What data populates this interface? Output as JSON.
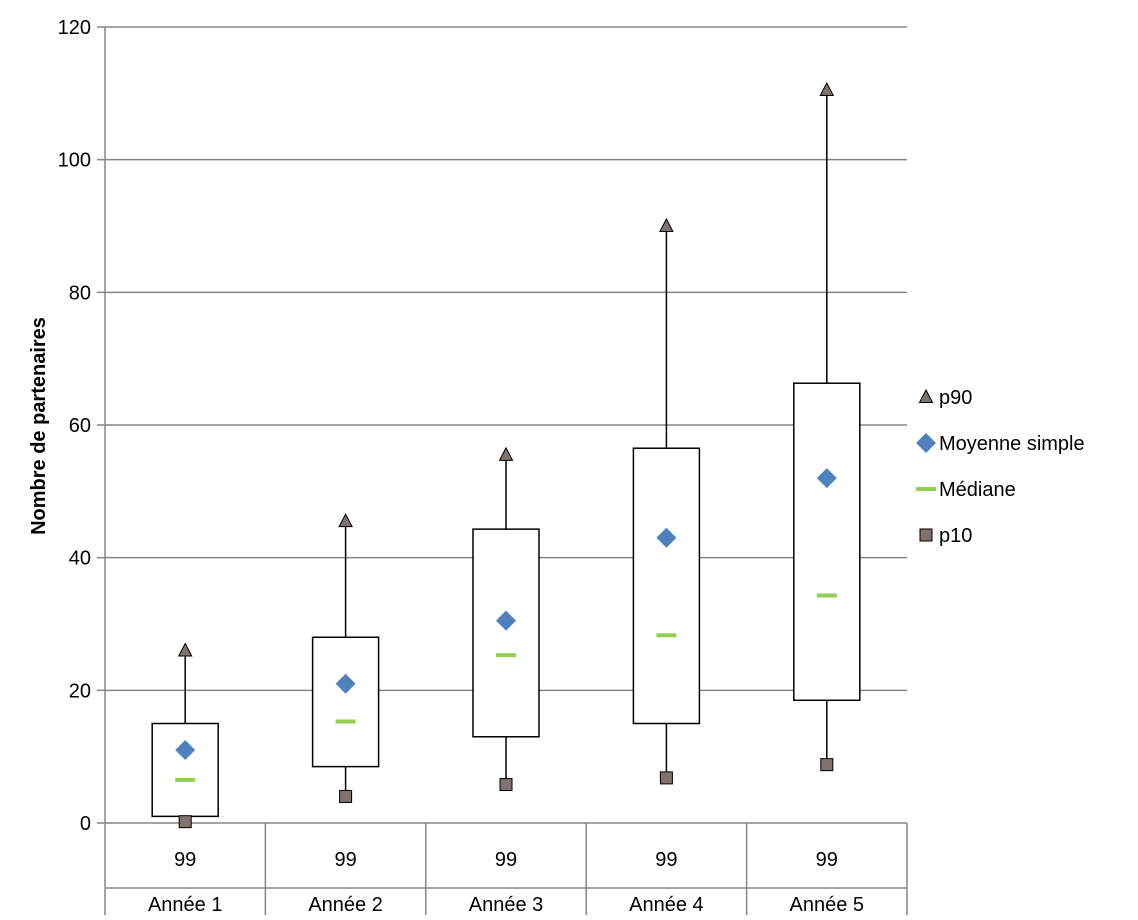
{
  "chart_data": {
    "type": "box",
    "title": "",
    "xlabel": "",
    "ylabel": "Nombre de partenaires",
    "ylim": [
      0,
      120
    ],
    "ytick_step": 20,
    "yticks": [
      "0",
      "20",
      "40",
      "60",
      "80",
      "100",
      "120"
    ],
    "grid": true,
    "legend_position": "right",
    "categories": [
      "Année 1",
      "Année 2",
      "Année 3",
      "Année 4",
      "Année 5"
    ],
    "counts": [
      "99",
      "99",
      "99",
      "99",
      "99"
    ],
    "series": [
      {
        "name": "p90",
        "key": "p90",
        "marker": "triangle",
        "color": "#7f7371",
        "values": [
          26,
          45.5,
          55.5,
          90,
          110.5
        ]
      },
      {
        "name": "Moyenne simple",
        "key": "mean",
        "marker": "diamond",
        "color": "#4f81bd",
        "values": [
          11,
          21,
          30.5,
          43,
          52
        ]
      },
      {
        "name": "Médiane",
        "key": "median",
        "marker": "dash",
        "color": "#92d050",
        "values": [
          6.5,
          15.3,
          25.3,
          28.3,
          34.3
        ]
      },
      {
        "name": "p10",
        "key": "p10",
        "marker": "square",
        "color": "#7f7371",
        "values": [
          0.2,
          4,
          5.8,
          6.8,
          8.8
        ]
      }
    ],
    "q1": [
      1,
      8.5,
      13,
      15,
      18.5
    ],
    "q3": [
      15,
      28,
      44.3,
      56.5,
      66.3
    ]
  }
}
